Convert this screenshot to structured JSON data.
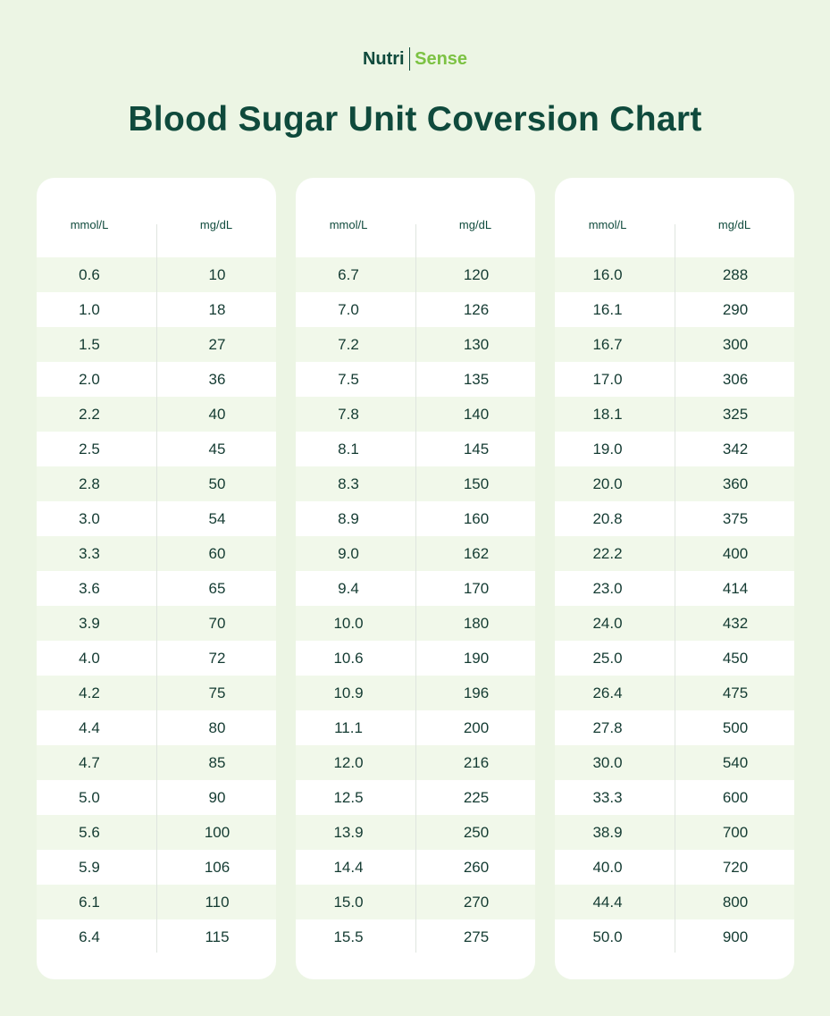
{
  "brand": {
    "part1": "Nutri",
    "part2": "Sense"
  },
  "title": "Blood Sugar Unit Coversion Chart",
  "colors": {
    "dark_green": "#0f4a3c",
    "accent_green": "#7cc243",
    "background": "#ecf5e4",
    "stripe": "#f1f8ea"
  },
  "chart_data": {
    "type": "table",
    "title": "Blood Sugar Unit Coversion Chart",
    "columns": [
      "mmol/L",
      "mg/dL"
    ],
    "tables": [
      {
        "headers": [
          "mmol/L",
          "mg/dL"
        ],
        "rows": [
          [
            "0.6",
            "10"
          ],
          [
            "1.0",
            "18"
          ],
          [
            "1.5",
            "27"
          ],
          [
            "2.0",
            "36"
          ],
          [
            "2.2",
            "40"
          ],
          [
            "2.5",
            "45"
          ],
          [
            "2.8",
            "50"
          ],
          [
            "3.0",
            "54"
          ],
          [
            "3.3",
            "60"
          ],
          [
            "3.6",
            "65"
          ],
          [
            "3.9",
            "70"
          ],
          [
            "4.0",
            "72"
          ],
          [
            "4.2",
            "75"
          ],
          [
            "4.4",
            "80"
          ],
          [
            "4.7",
            "85"
          ],
          [
            "5.0",
            "90"
          ],
          [
            "5.6",
            "100"
          ],
          [
            "5.9",
            "106"
          ],
          [
            "6.1",
            "110"
          ],
          [
            "6.4",
            "115"
          ]
        ]
      },
      {
        "headers": [
          "mmol/L",
          "mg/dL"
        ],
        "rows": [
          [
            "6.7",
            "120"
          ],
          [
            "7.0",
            "126"
          ],
          [
            "7.2",
            "130"
          ],
          [
            "7.5",
            "135"
          ],
          [
            "7.8",
            "140"
          ],
          [
            "8.1",
            "145"
          ],
          [
            "8.3",
            "150"
          ],
          [
            "8.9",
            "160"
          ],
          [
            "9.0",
            "162"
          ],
          [
            "9.4",
            "170"
          ],
          [
            "10.0",
            "180"
          ],
          [
            "10.6",
            "190"
          ],
          [
            "10.9",
            "196"
          ],
          [
            "11.1",
            "200"
          ],
          [
            "12.0",
            "216"
          ],
          [
            "12.5",
            "225"
          ],
          [
            "13.9",
            "250"
          ],
          [
            "14.4",
            "260"
          ],
          [
            "15.0",
            "270"
          ],
          [
            "15.5",
            "275"
          ]
        ]
      },
      {
        "headers": [
          "mmol/L",
          "mg/dL"
        ],
        "rows": [
          [
            "16.0",
            "288"
          ],
          [
            "16.1",
            "290"
          ],
          [
            "16.7",
            "300"
          ],
          [
            "17.0",
            "306"
          ],
          [
            "18.1",
            "325"
          ],
          [
            "19.0",
            "342"
          ],
          [
            "20.0",
            "360"
          ],
          [
            "20.8",
            "375"
          ],
          [
            "22.2",
            "400"
          ],
          [
            "23.0",
            "414"
          ],
          [
            "24.0",
            "432"
          ],
          [
            "25.0",
            "450"
          ],
          [
            "26.4",
            "475"
          ],
          [
            "27.8",
            "500"
          ],
          [
            "30.0",
            "540"
          ],
          [
            "33.3",
            "600"
          ],
          [
            "38.9",
            "700"
          ],
          [
            "40.0",
            "720"
          ],
          [
            "44.4",
            "800"
          ],
          [
            "50.0",
            "900"
          ]
        ]
      }
    ]
  }
}
